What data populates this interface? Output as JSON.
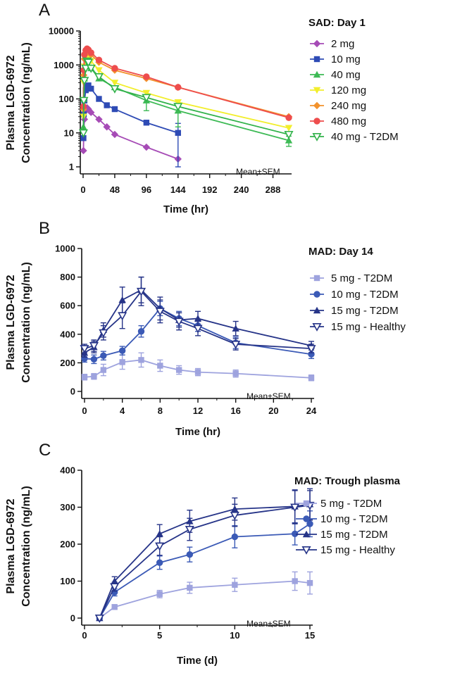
{
  "chart_data": [
    {
      "panel": "A",
      "type": "line",
      "yscale": "log",
      "title": "SAD:  Day 1",
      "xlabel": "Time (hr)",
      "ylabel": [
        "Plasma LGD-6972",
        "Concentration (ng/mL)"
      ],
      "xlim": [
        0,
        312
      ],
      "ylim": [
        1,
        10000
      ],
      "xticks": [
        0,
        48,
        96,
        144,
        192,
        240,
        288
      ],
      "yticks": [
        1,
        10,
        100,
        1000,
        10000
      ],
      "ytick_labels": [
        "1",
        "10",
        "100",
        "1000",
        "10000"
      ],
      "annotation": "Mean±SEM",
      "series": [
        {
          "name": "2 mg",
          "color": "#a64bb6",
          "marker": "diamond",
          "x": [
            0.5,
            1,
            2,
            4,
            6,
            8,
            12,
            24,
            36,
            48,
            96,
            144
          ],
          "y": [
            3,
            12,
            25,
            45,
            55,
            50,
            40,
            25,
            15,
            9,
            3.8,
            1.7
          ],
          "err": [
            0,
            0,
            0,
            0,
            0,
            0,
            0,
            0,
            0,
            0,
            0,
            0
          ]
        },
        {
          "name": "10 mg",
          "color": "#2e4bb5",
          "marker": "square",
          "x": [
            0.5,
            1,
            2,
            4,
            6,
            8,
            12,
            24,
            36,
            48,
            96,
            144
          ],
          "y": [
            7,
            35,
            90,
            180,
            240,
            250,
            200,
            100,
            65,
            50,
            20,
            10
          ],
          "err": [
            0,
            0,
            0,
            0,
            0,
            0,
            0,
            0,
            0,
            0,
            0,
            9
          ]
        },
        {
          "name": "40 mg",
          "color": "#3dba55",
          "marker": "triangle",
          "x": [
            0.5,
            1,
            2,
            4,
            6,
            8,
            12,
            24,
            48,
            96,
            144,
            312
          ],
          "y": [
            15,
            100,
            400,
            900,
            1100,
            1000,
            800,
            400,
            220,
            90,
            45,
            6
          ],
          "err": [
            0,
            0,
            0,
            0,
            0,
            0,
            0,
            0,
            0,
            45,
            30,
            2
          ]
        },
        {
          "name": "120 mg",
          "color": "#f2ee2c",
          "marker": "triangle-down",
          "x": [
            0.5,
            1,
            2,
            4,
            6,
            8,
            12,
            24,
            48,
            96,
            144,
            312
          ],
          "y": [
            30,
            300,
            900,
            1600,
            1800,
            1700,
            1300,
            700,
            300,
            150,
            80,
            14
          ],
          "err": [
            0,
            0,
            0,
            0,
            0,
            0,
            0,
            0,
            0,
            0,
            0,
            0
          ]
        },
        {
          "name": "240 mg",
          "color": "#f2922c",
          "marker": "diamond",
          "x": [
            0.5,
            1,
            2,
            4,
            6,
            8,
            12,
            24,
            48,
            96,
            144,
            312
          ],
          "y": [
            50,
            500,
            1500,
            2200,
            2600,
            2500,
            2000,
            1200,
            700,
            400,
            220,
            30
          ],
          "err": [
            0,
            0,
            0,
            0,
            0,
            0,
            0,
            0,
            0,
            0,
            0,
            0
          ]
        },
        {
          "name": "480 mg",
          "color": "#ee4d4d",
          "marker": "circle",
          "x": [
            0.5,
            1,
            2,
            4,
            6,
            8,
            12,
            24,
            48,
            96,
            144,
            312
          ],
          "y": [
            60,
            700,
            2000,
            2700,
            3000,
            2800,
            2300,
            1400,
            800,
            450,
            220,
            28
          ],
          "err": [
            0,
            0,
            0,
            0,
            0,
            0,
            0,
            0,
            0,
            0,
            0,
            0
          ]
        },
        {
          "name": "40 mg - T2DM",
          "color": "#31b24a",
          "marker": "open-triangle-down",
          "x": [
            0.5,
            1,
            2,
            4,
            6,
            8,
            12,
            24,
            48,
            96,
            144,
            312
          ],
          "y": [
            10,
            90,
            350,
            800,
            1300,
            1200,
            800,
            450,
            200,
            110,
            60,
            9
          ],
          "err": [
            0,
            0,
            0,
            0,
            0,
            0,
            0,
            0,
            0,
            0,
            0,
            0
          ]
        }
      ]
    },
    {
      "panel": "B",
      "type": "line",
      "yscale": "linear",
      "title": "MAD: Day 14",
      "xlabel": "Time (hr)",
      "ylabel": [
        "Plasma LGD-6972",
        "Concentration (ng/mL)"
      ],
      "xlim": [
        0,
        24
      ],
      "ylim": [
        0,
        1000
      ],
      "xticks": [
        0,
        4,
        8,
        12,
        16,
        20,
        24
      ],
      "yticks": [
        0,
        200,
        400,
        600,
        800,
        1000
      ],
      "ytick_labels": [
        "0",
        "200",
        "400",
        "600",
        "800",
        "1000"
      ],
      "annotation": "Mean±SEM",
      "series": [
        {
          "name": "5 mg - T2DM",
          "color": "#9ea3de",
          "marker": "square",
          "x": [
            0,
            1,
            2,
            4,
            6,
            8,
            10,
            12,
            16,
            24
          ],
          "y": [
            100,
            105,
            150,
            205,
            220,
            180,
            150,
            135,
            125,
            95
          ],
          "err": [
            20,
            20,
            40,
            50,
            50,
            40,
            30,
            25,
            25,
            20
          ]
        },
        {
          "name": "10 mg - T2DM",
          "color": "#3b5ab6",
          "marker": "circle",
          "x": [
            0,
            1,
            2,
            4,
            6,
            8,
            10,
            12,
            16,
            24
          ],
          "y": [
            230,
            225,
            250,
            285,
            420,
            580,
            510,
            460,
            340,
            260
          ],
          "err": [
            25,
            30,
            30,
            30,
            40,
            50,
            50,
            40,
            40,
            30
          ]
        },
        {
          "name": "15 mg - T2DM",
          "color": "#263488",
          "marker": "triangle",
          "x": [
            0,
            1,
            2,
            4,
            6,
            8,
            10,
            12,
            16,
            24
          ],
          "y": [
            270,
            310,
            430,
            640,
            710,
            580,
            500,
            510,
            440,
            320
          ],
          "err": [
            30,
            40,
            50,
            90,
            90,
            80,
            50,
            50,
            50,
            30
          ]
        },
        {
          "name": "15 mg - Healthy",
          "color": "#263488",
          "marker": "open-triangle-down",
          "x": [
            0,
            1,
            2,
            4,
            6,
            8,
            10,
            12,
            16,
            24
          ],
          "y": [
            300,
            320,
            410,
            530,
            700,
            560,
            490,
            440,
            330,
            300
          ],
          "err": [
            30,
            40,
            50,
            90,
            100,
            80,
            60,
            50,
            40,
            30
          ]
        }
      ]
    },
    {
      "panel": "C",
      "type": "line",
      "yscale": "linear",
      "title": "MAD: Trough plasma",
      "xlabel": "Time (d)",
      "ylabel": [
        "Plasma LGD-6972",
        "Concentration (ng/mL)"
      ],
      "xlim": [
        0,
        15
      ],
      "ylim": [
        0,
        400
      ],
      "xticks": [
        0,
        5,
        10,
        15
      ],
      "yticks": [
        0,
        100,
        200,
        300,
        400
      ],
      "ytick_labels": [
        "0",
        "100",
        "200",
        "300",
        "400"
      ],
      "annotation": "Mean±SEM",
      "series": [
        {
          "name": "5 mg - T2DM",
          "color": "#9ea3de",
          "marker": "square",
          "x": [
            1,
            2,
            5,
            7,
            10,
            14,
            15
          ],
          "y": [
            0,
            30,
            65,
            82,
            90,
            100,
            95
          ],
          "err": [
            0,
            5,
            10,
            15,
            18,
            25,
            30
          ]
        },
        {
          "name": "10 mg - T2DM",
          "color": "#3b5ab6",
          "marker": "circle",
          "x": [
            1,
            2,
            5,
            7,
            10,
            14,
            15
          ],
          "y": [
            0,
            70,
            150,
            172,
            220,
            228,
            255
          ],
          "err": [
            0,
            10,
            18,
            20,
            30,
            30,
            35
          ]
        },
        {
          "name": "15 mg - T2DM",
          "color": "#263488",
          "marker": "triangle",
          "x": [
            1,
            2,
            5,
            7,
            10,
            14,
            15
          ],
          "y": [
            0,
            100,
            228,
            262,
            295,
            302,
            308
          ],
          "err": [
            0,
            12,
            25,
            30,
            30,
            45,
            42
          ]
        },
        {
          "name": "15 mg - Healthy",
          "color": "#263488",
          "marker": "open-triangle-down",
          "x": [
            1,
            2,
            5,
            7,
            10,
            14,
            15
          ],
          "y": [
            0,
            85,
            195,
            240,
            278,
            300,
            305
          ],
          "err": [
            0,
            12,
            25,
            30,
            30,
            45,
            40
          ]
        }
      ]
    }
  ]
}
